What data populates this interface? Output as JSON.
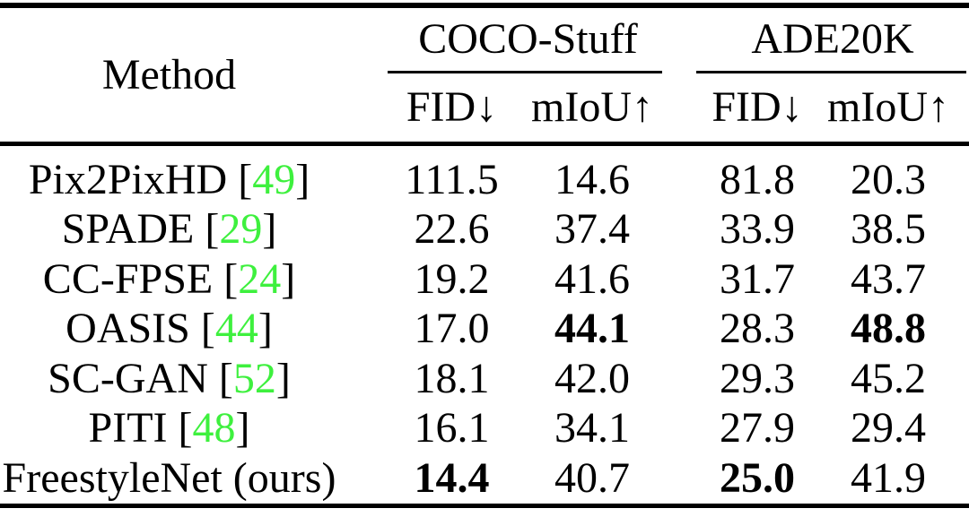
{
  "table": {
    "colors": {
      "citation_green": "#3ef03e",
      "text": "#000000",
      "rule": "#000000",
      "background": "#ffffff"
    },
    "header": {
      "method": "Method",
      "groups": [
        {
          "name": "COCO-Stuff",
          "metrics": [
            "FID↓",
            "mIoU↑"
          ]
        },
        {
          "name": "ADE20K",
          "metrics": [
            "FID↓",
            "mIoU↑"
          ]
        }
      ]
    },
    "rows": [
      {
        "prefix": "Pix2PixHD [",
        "citation": "49",
        "suffix": "]",
        "values": [
          "111.5",
          "14.6",
          "81.8",
          "20.3"
        ]
      },
      {
        "prefix": "SPADE [",
        "citation": "29",
        "suffix": "]",
        "values": [
          "22.6",
          "37.4",
          "33.9",
          "38.5"
        ]
      },
      {
        "prefix": "CC-FPSE [",
        "citation": "24",
        "suffix": "]",
        "values": [
          "19.2",
          "41.6",
          "31.7",
          "43.7"
        ]
      },
      {
        "prefix": "OASIS [",
        "citation": "44",
        "suffix": "]",
        "values": [
          "17.0",
          "44.1",
          "28.3",
          "48.8"
        ],
        "bold": [
          false,
          true,
          false,
          true
        ]
      },
      {
        "prefix": "SC-GAN [",
        "citation": "52",
        "suffix": "]",
        "values": [
          "18.1",
          "42.0",
          "29.3",
          "45.2"
        ]
      },
      {
        "prefix": "PITI [",
        "citation": "48",
        "suffix": "]",
        "values": [
          "16.1",
          "34.1",
          "27.9",
          "29.4"
        ]
      },
      {
        "prefix": "FreestyleNet (ours)",
        "citation": "",
        "suffix": "",
        "values": [
          "14.4",
          "40.7",
          "25.0",
          "41.9"
        ],
        "bold": [
          true,
          false,
          true,
          false
        ]
      }
    ]
  }
}
